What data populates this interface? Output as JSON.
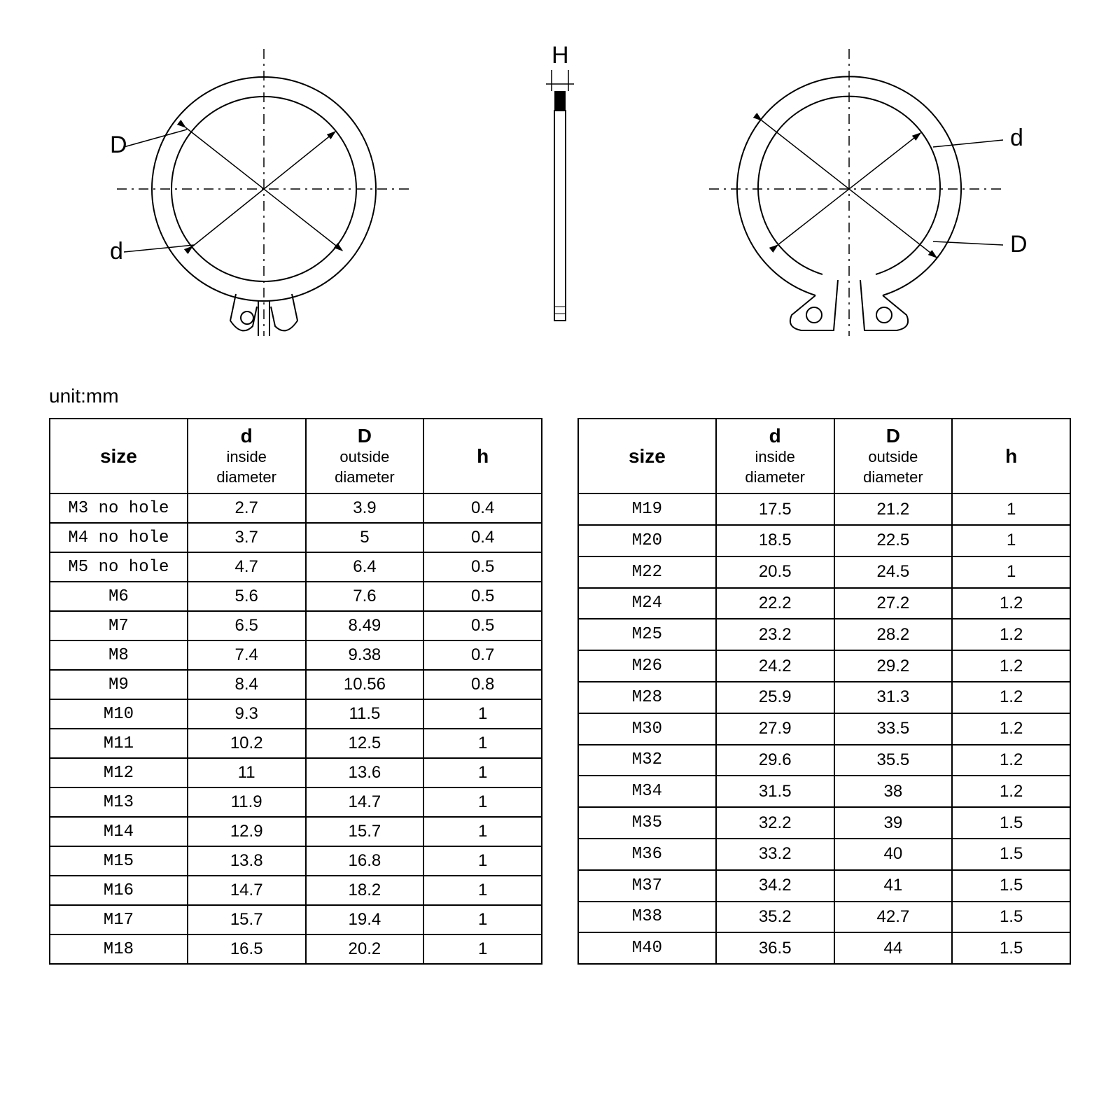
{
  "unit_label": "unit:mm",
  "diagram": {
    "label_D": "D",
    "label_d": "d",
    "label_H": "H",
    "stroke": "#000000",
    "stroke_width": 2,
    "dash": "10,6,3,6"
  },
  "columns": {
    "size": "size",
    "d_main": "d",
    "d_sub1": "inside",
    "d_sub2": "diameter",
    "D_main": "D",
    "D_sub1": "outside",
    "D_sub2": "diameter",
    "h": "h"
  },
  "table_left": [
    {
      "size": "M3 no hole",
      "d": "2.7",
      "D": "3.9",
      "h": "0.4"
    },
    {
      "size": "M4 no hole",
      "d": "3.7",
      "D": "5",
      "h": "0.4"
    },
    {
      "size": "M5 no hole",
      "d": "4.7",
      "D": "6.4",
      "h": "0.5"
    },
    {
      "size": "M6",
      "d": "5.6",
      "D": "7.6",
      "h": "0.5"
    },
    {
      "size": "M7",
      "d": "6.5",
      "D": "8.49",
      "h": "0.5"
    },
    {
      "size": "M8",
      "d": "7.4",
      "D": "9.38",
      "h": "0.7"
    },
    {
      "size": "M9",
      "d": "8.4",
      "D": "10.56",
      "h": "0.8"
    },
    {
      "size": "M10",
      "d": "9.3",
      "D": "11.5",
      "h": "1"
    },
    {
      "size": "M11",
      "d": "10.2",
      "D": "12.5",
      "h": "1"
    },
    {
      "size": "M12",
      "d": "11",
      "D": "13.6",
      "h": "1"
    },
    {
      "size": "M13",
      "d": "11.9",
      "D": "14.7",
      "h": "1"
    },
    {
      "size": "M14",
      "d": "12.9",
      "D": "15.7",
      "h": "1"
    },
    {
      "size": "M15",
      "d": "13.8",
      "D": "16.8",
      "h": "1"
    },
    {
      "size": "M16",
      "d": "14.7",
      "D": "18.2",
      "h": "1"
    },
    {
      "size": "M17",
      "d": "15.7",
      "D": "19.4",
      "h": "1"
    },
    {
      "size": "M18",
      "d": "16.5",
      "D": "20.2",
      "h": "1"
    }
  ],
  "table_right": [
    {
      "size": "M19",
      "d": "17.5",
      "D": "21.2",
      "h": "1"
    },
    {
      "size": "M20",
      "d": "18.5",
      "D": "22.5",
      "h": "1"
    },
    {
      "size": "M22",
      "d": "20.5",
      "D": "24.5",
      "h": "1"
    },
    {
      "size": "M24",
      "d": "22.2",
      "D": "27.2",
      "h": "1.2"
    },
    {
      "size": "M25",
      "d": "23.2",
      "D": "28.2",
      "h": "1.2"
    },
    {
      "size": "M26",
      "d": "24.2",
      "D": "29.2",
      "h": "1.2"
    },
    {
      "size": "M28",
      "d": "25.9",
      "D": "31.3",
      "h": "1.2"
    },
    {
      "size": "M30",
      "d": "27.9",
      "D": "33.5",
      "h": "1.2"
    },
    {
      "size": "M32",
      "d": "29.6",
      "D": "35.5",
      "h": "1.2"
    },
    {
      "size": "M34",
      "d": "31.5",
      "D": "38",
      "h": "1.2"
    },
    {
      "size": "M35",
      "d": "32.2",
      "D": "39",
      "h": "1.5"
    },
    {
      "size": "M36",
      "d": "33.2",
      "D": "40",
      "h": "1.5"
    },
    {
      "size": "M37",
      "d": "34.2",
      "D": "41",
      "h": "1.5"
    },
    {
      "size": "M38",
      "d": "35.2",
      "D": "42.7",
      "h": "1.5"
    },
    {
      "size": "M40",
      "d": "36.5",
      "D": "44",
      "h": "1.5"
    }
  ]
}
